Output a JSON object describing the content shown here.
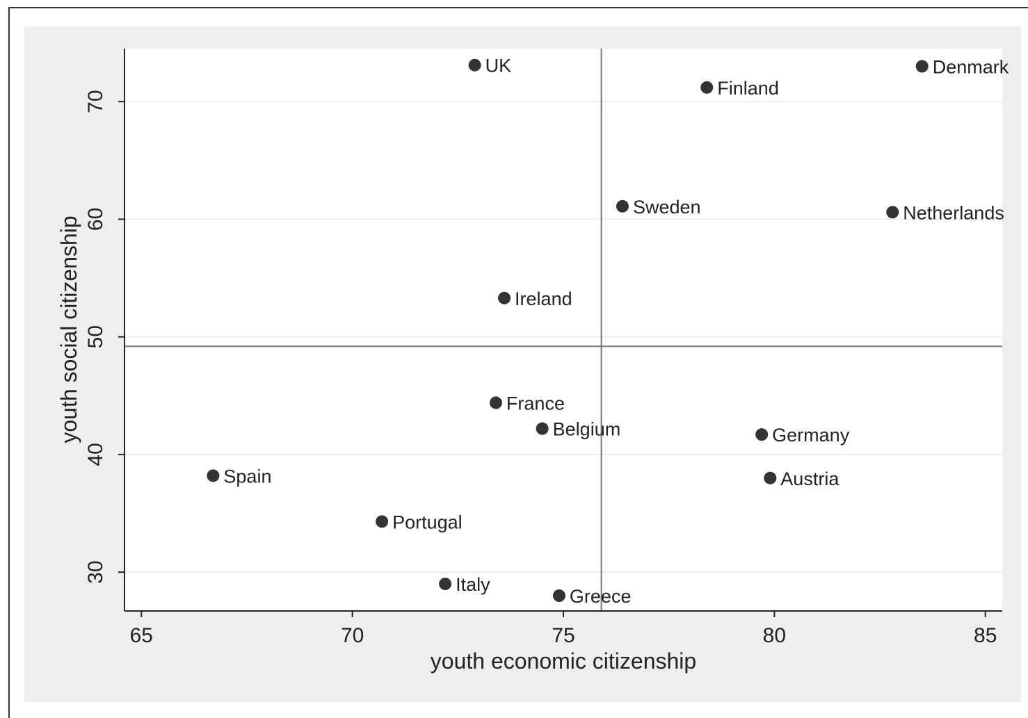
{
  "chart_data": {
    "type": "scatter",
    "xlabel": "youth economic citizenship",
    "ylabel": "youth social citizenship",
    "xlim": [
      64.6,
      85.4
    ],
    "ylim": [
      26.7,
      74.5
    ],
    "xticks": [
      65,
      70,
      75,
      80,
      85
    ],
    "yticks": [
      30,
      40,
      50,
      60,
      70
    ],
    "grid": true,
    "reference_lines": {
      "x": 75.9,
      "y": 49.2
    },
    "colors": {
      "marker": "#333333",
      "plot_background": "#ffffff",
      "outer_background": "#eeeeee",
      "reference_line": "#777777",
      "grid": "#eeeeee"
    },
    "points": [
      {
        "label": "UK",
        "x": 72.9,
        "y": 73.1
      },
      {
        "label": "Finland",
        "x": 78.4,
        "y": 71.2
      },
      {
        "label": "Denmark",
        "x": 83.5,
        "y": 73.0
      },
      {
        "label": "Sweden",
        "x": 76.4,
        "y": 61.1
      },
      {
        "label": "Netherlands",
        "x": 82.8,
        "y": 60.6
      },
      {
        "label": "Ireland",
        "x": 73.6,
        "y": 53.3
      },
      {
        "label": "France",
        "x": 73.4,
        "y": 44.4
      },
      {
        "label": "Belgium",
        "x": 74.5,
        "y": 42.2
      },
      {
        "label": "Germany",
        "x": 79.7,
        "y": 41.7
      },
      {
        "label": "Austria",
        "x": 79.9,
        "y": 38.0
      },
      {
        "label": "Spain",
        "x": 66.7,
        "y": 38.2
      },
      {
        "label": "Portugal",
        "x": 70.7,
        "y": 34.3
      },
      {
        "label": "Italy",
        "x": 72.2,
        "y": 29.0
      },
      {
        "label": "Greece",
        "x": 74.9,
        "y": 28.0
      }
    ]
  }
}
